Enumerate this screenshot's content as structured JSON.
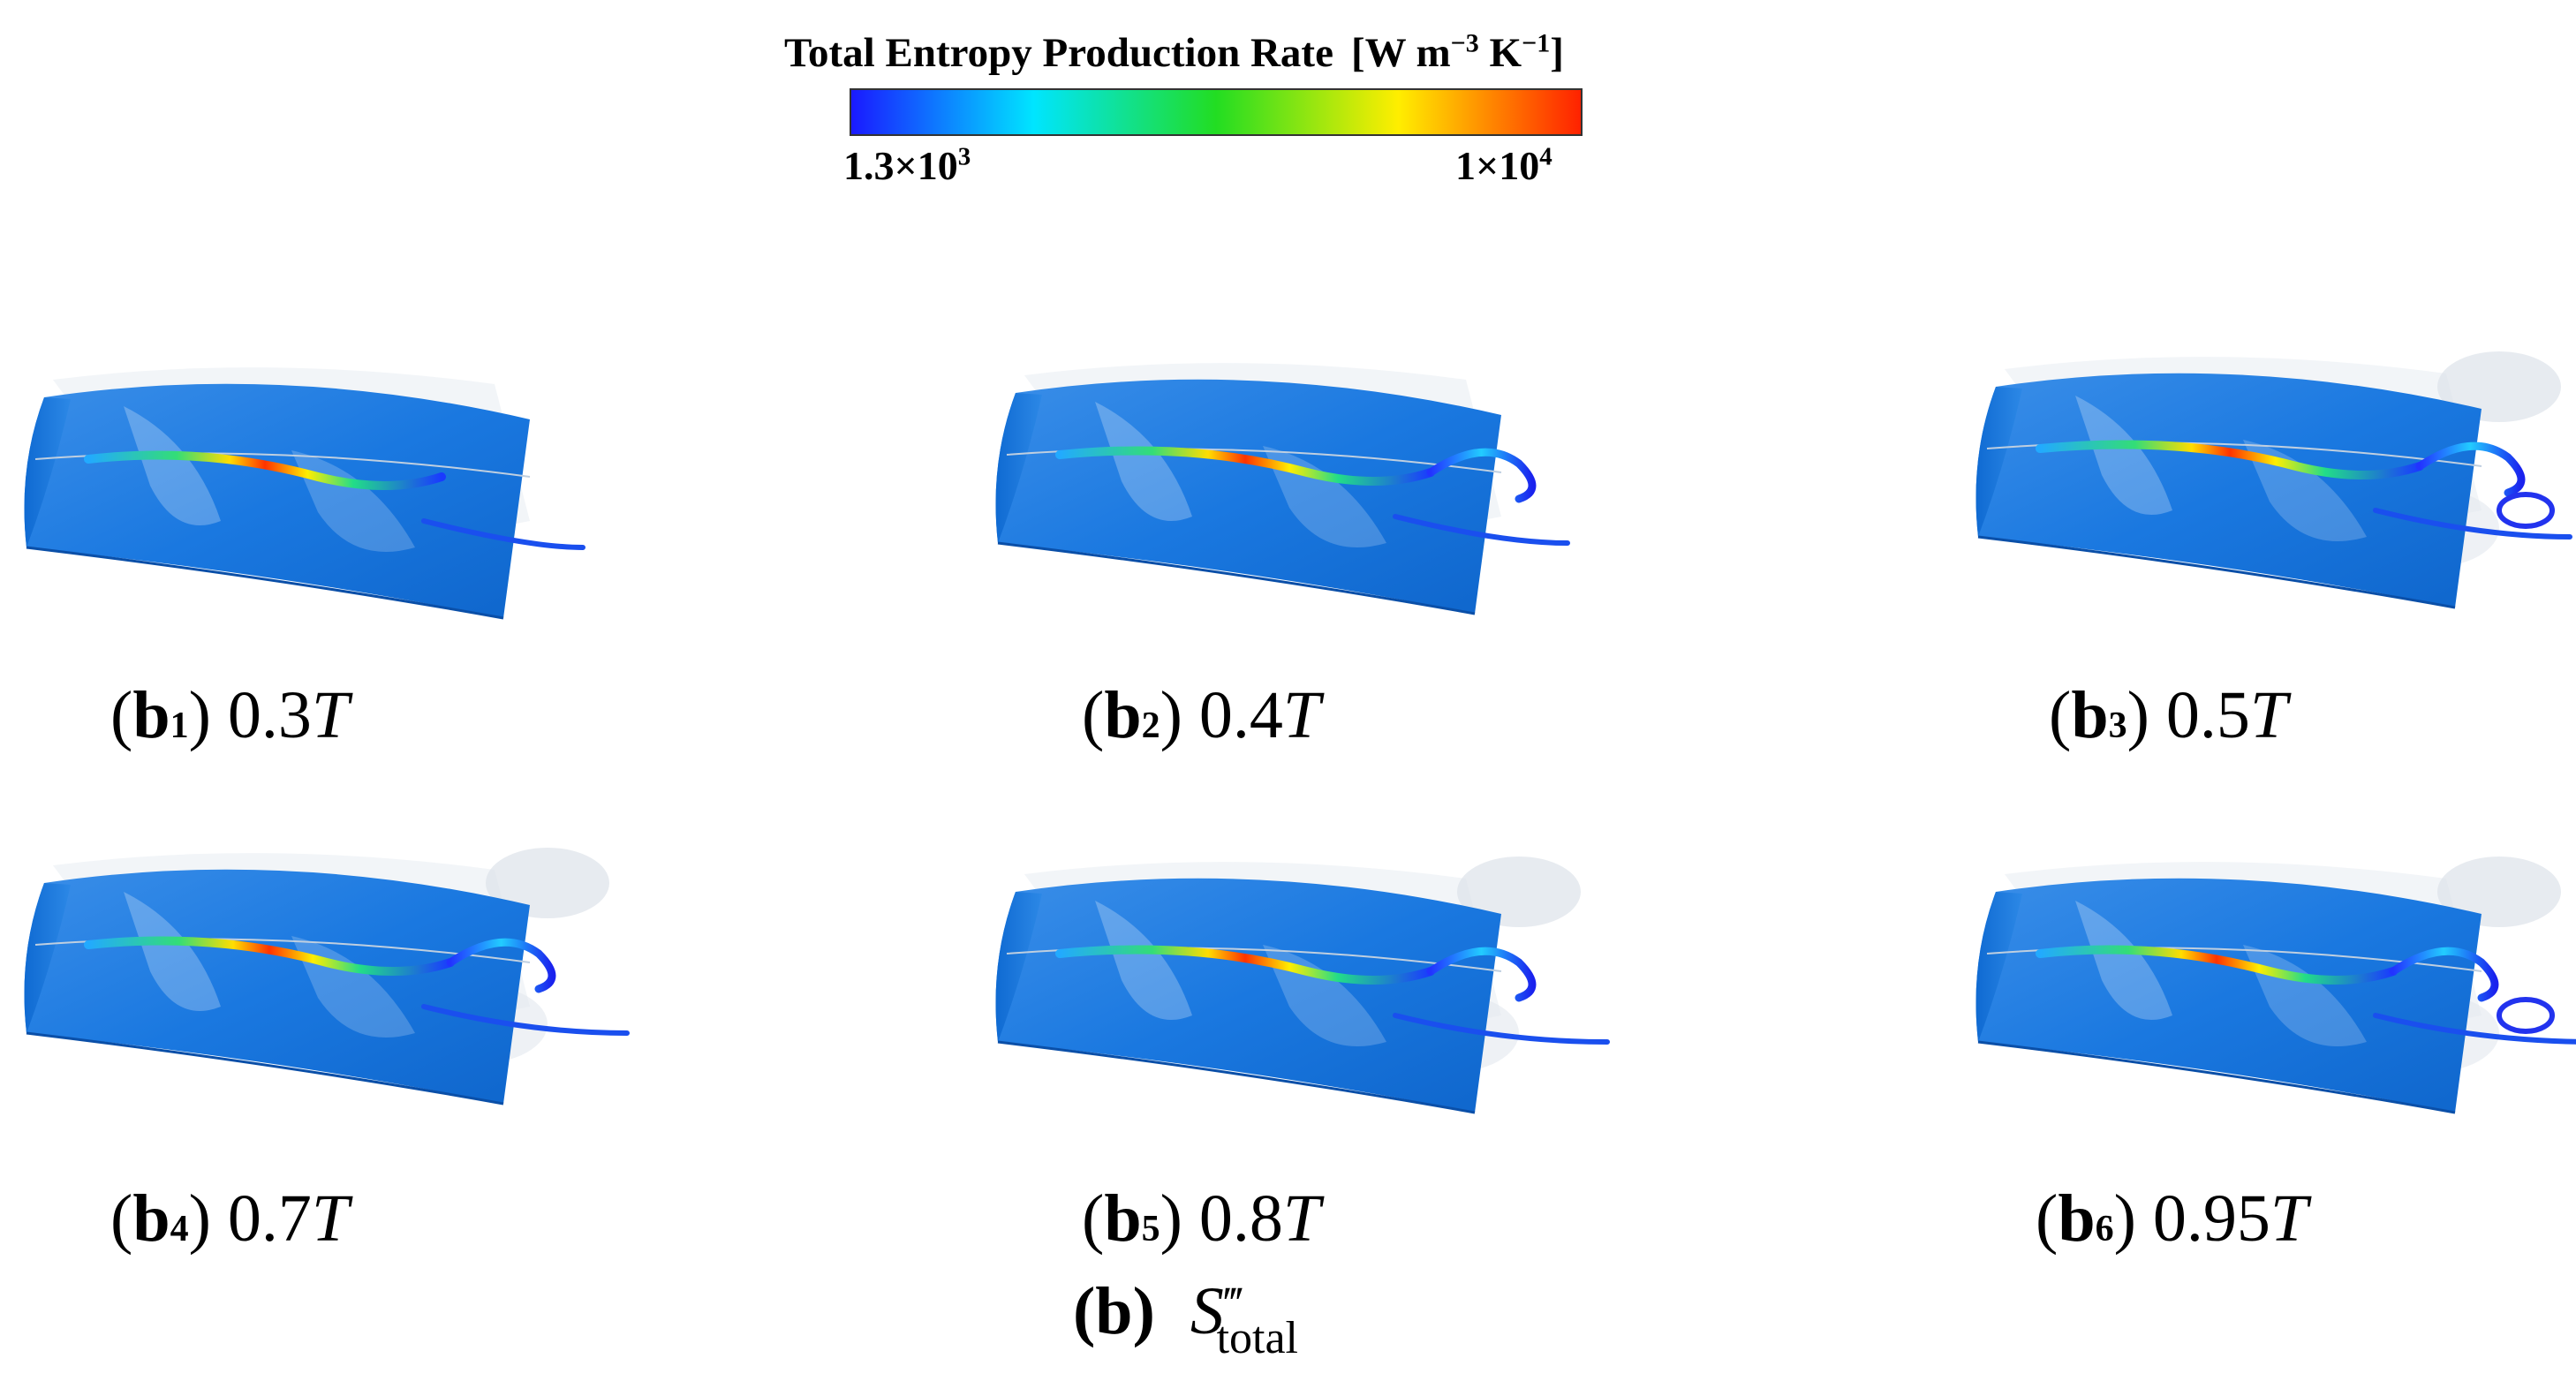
{
  "colorbar": {
    "title": "Total Entropy Production Rate",
    "unit_prefix": "[W m",
    "unit_exp1": "−3",
    "unit_mid": " K",
    "unit_exp2": "−1",
    "unit_suffix": "]",
    "min_base": "1.3×10",
    "min_exp": "3",
    "max_base": "1×10",
    "max_exp": "4",
    "colors": [
      "#1a1aff",
      "#00e5ff",
      "#22dd22",
      "#ffee00",
      "#ff2200"
    ]
  },
  "panels": [
    {
      "letter": "b",
      "index": "1",
      "value": "0.3",
      "unit": "T"
    },
    {
      "letter": "b",
      "index": "2",
      "value": "0.4",
      "unit": "T"
    },
    {
      "letter": "b",
      "index": "3",
      "value": "0.5",
      "unit": "T"
    },
    {
      "letter": "b",
      "index": "4",
      "value": "0.7",
      "unit": "T"
    },
    {
      "letter": "b",
      "index": "5",
      "value": "0.8",
      "unit": "T"
    },
    {
      "letter": "b",
      "index": "6",
      "value": "0.95",
      "unit": "T"
    }
  ],
  "caption": {
    "letter": "(b)",
    "symbol": "S",
    "prime": "‴",
    "subscript": "total"
  }
}
